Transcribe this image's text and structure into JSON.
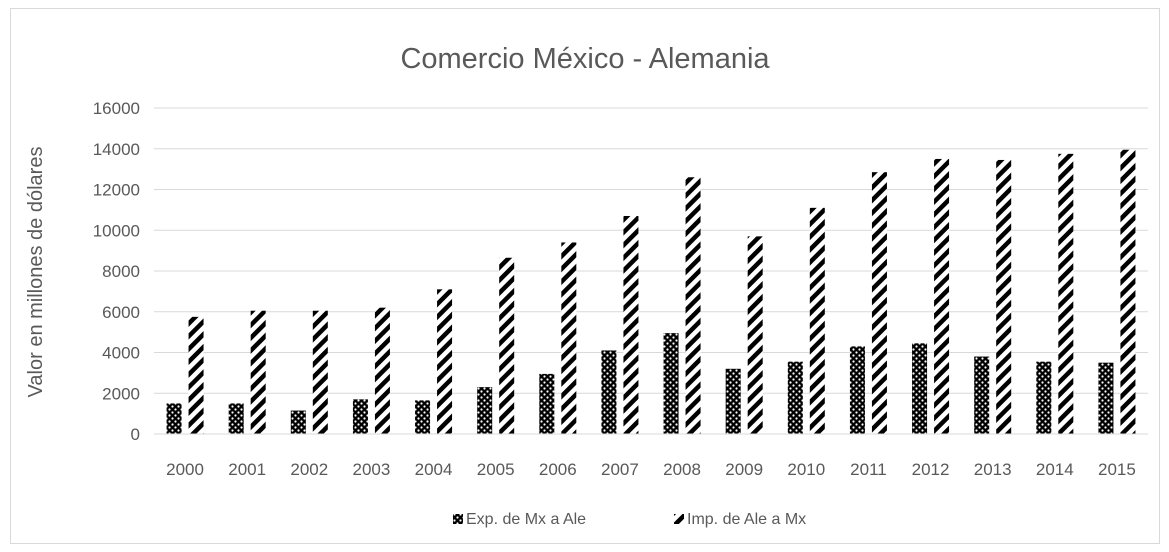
{
  "chart_data": {
    "type": "bar",
    "title": "Comercio México - Alemania",
    "xlabel": "",
    "ylabel": "Valor en millones de dólares",
    "ylim": [
      0,
      16000
    ],
    "yticks": [
      0,
      2000,
      4000,
      6000,
      8000,
      10000,
      12000,
      14000,
      16000
    ],
    "grid": true,
    "legend_position": "bottom",
    "categories": [
      "2000",
      "2001",
      "2002",
      "2003",
      "2004",
      "2005",
      "2006",
      "2007",
      "2008",
      "2009",
      "2010",
      "2011",
      "2012",
      "2013",
      "2014",
      "2015"
    ],
    "series": [
      {
        "name": "Exp. de Mx a Ale",
        "pattern": "dots",
        "values": [
          1500,
          1500,
          1150,
          1700,
          1650,
          2300,
          2950,
          4100,
          4950,
          3200,
          3550,
          4300,
          4450,
          3800,
          3550,
          3500
        ]
      },
      {
        "name": "Imp. de Ale a Mx",
        "pattern": "diagonal-stripes",
        "values": [
          5750,
          6050,
          6050,
          6200,
          7100,
          8650,
          9400,
          10700,
          12600,
          9700,
          11100,
          12850,
          13500,
          13450,
          13750,
          13950
        ]
      }
    ],
    "colors": {
      "ink": "#000000",
      "text": "#595959",
      "grid": "#d9d9d9"
    }
  }
}
